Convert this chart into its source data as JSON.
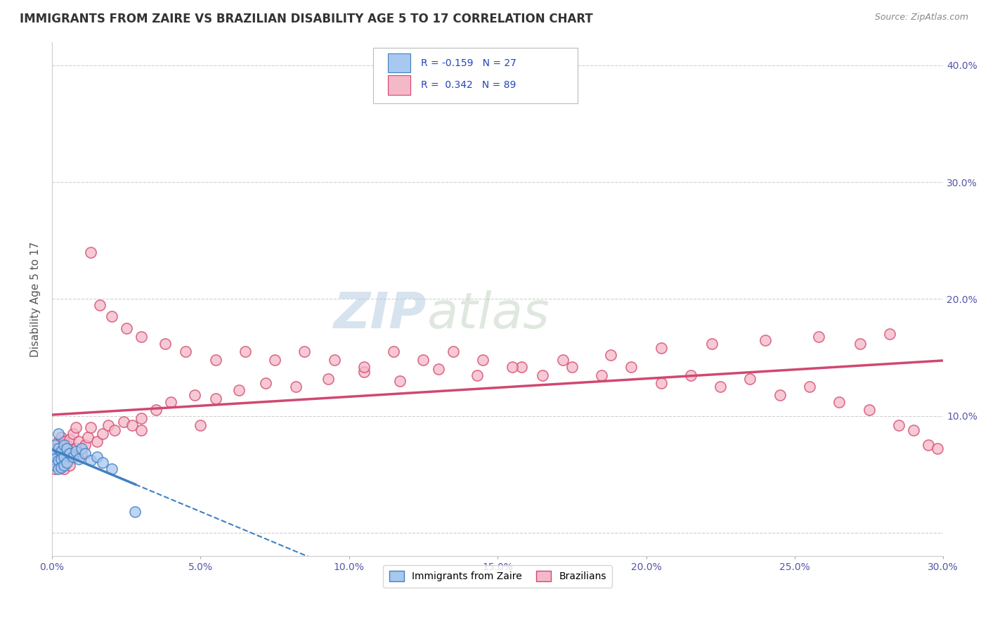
{
  "title": "IMMIGRANTS FROM ZAIRE VS BRAZILIAN DISABILITY AGE 5 TO 17 CORRELATION CHART",
  "source": "Source: ZipAtlas.com",
  "ylabel": "Disability Age 5 to 17",
  "xlabel": "",
  "legend_bottom": [
    "Immigrants from Zaire",
    "Brazilians"
  ],
  "r_zaire": -0.159,
  "n_zaire": 27,
  "r_brazil": 0.342,
  "n_brazil": 89,
  "xlim": [
    0.0,
    0.3
  ],
  "ylim": [
    -0.02,
    0.42
  ],
  "xticks": [
    0.0,
    0.05,
    0.1,
    0.15,
    0.2,
    0.25,
    0.3
  ],
  "yticks": [
    0.0,
    0.1,
    0.2,
    0.3,
    0.4
  ],
  "color_zaire": "#a8c8f0",
  "color_brazil": "#f5b8c8",
  "line_color_zaire": "#4080c0",
  "line_color_brazil": "#d04870",
  "watermark_zip": "ZIP",
  "watermark_atlas": "atlas",
  "background": "#ffffff",
  "grid_color": "#d0d0d0",
  "zaire_points_x": [
    0.001,
    0.001,
    0.001,
    0.001,
    0.002,
    0.002,
    0.002,
    0.002,
    0.003,
    0.003,
    0.003,
    0.004,
    0.004,
    0.004,
    0.005,
    0.005,
    0.006,
    0.007,
    0.008,
    0.009,
    0.01,
    0.011,
    0.013,
    0.015,
    0.017,
    0.02,
    0.028
  ],
  "zaire_points_y": [
    0.075,
    0.068,
    0.063,
    0.058,
    0.085,
    0.072,
    0.062,
    0.055,
    0.07,
    0.063,
    0.056,
    0.075,
    0.065,
    0.058,
    0.072,
    0.06,
    0.068,
    0.065,
    0.07,
    0.063,
    0.072,
    0.068,
    0.062,
    0.065,
    0.06,
    0.055,
    0.018
  ],
  "brazil_points_x": [
    0.001,
    0.001,
    0.001,
    0.002,
    0.002,
    0.002,
    0.003,
    0.003,
    0.003,
    0.004,
    0.004,
    0.004,
    0.005,
    0.005,
    0.006,
    0.006,
    0.007,
    0.007,
    0.008,
    0.008,
    0.009,
    0.01,
    0.011,
    0.012,
    0.013,
    0.015,
    0.017,
    0.019,
    0.021,
    0.024,
    0.027,
    0.03,
    0.035,
    0.04,
    0.048,
    0.055,
    0.063,
    0.072,
    0.082,
    0.093,
    0.105,
    0.117,
    0.13,
    0.143,
    0.158,
    0.172,
    0.188,
    0.205,
    0.222,
    0.24,
    0.258,
    0.272,
    0.282,
    0.013,
    0.016,
    0.02,
    0.025,
    0.03,
    0.038,
    0.045,
    0.055,
    0.065,
    0.075,
    0.085,
    0.095,
    0.105,
    0.115,
    0.125,
    0.135,
    0.145,
    0.155,
    0.165,
    0.175,
    0.185,
    0.195,
    0.205,
    0.215,
    0.225,
    0.235,
    0.245,
    0.255,
    0.265,
    0.275,
    0.285,
    0.29,
    0.295,
    0.298,
    0.03,
    0.05
  ],
  "brazil_points_y": [
    0.06,
    0.072,
    0.055,
    0.078,
    0.065,
    0.058,
    0.082,
    0.07,
    0.062,
    0.078,
    0.065,
    0.055,
    0.075,
    0.062,
    0.08,
    0.058,
    0.085,
    0.068,
    0.09,
    0.072,
    0.078,
    0.068,
    0.075,
    0.082,
    0.09,
    0.078,
    0.085,
    0.092,
    0.088,
    0.095,
    0.092,
    0.098,
    0.105,
    0.112,
    0.118,
    0.115,
    0.122,
    0.128,
    0.125,
    0.132,
    0.138,
    0.13,
    0.14,
    0.135,
    0.142,
    0.148,
    0.152,
    0.158,
    0.162,
    0.165,
    0.168,
    0.162,
    0.17,
    0.24,
    0.195,
    0.185,
    0.175,
    0.168,
    0.162,
    0.155,
    0.148,
    0.155,
    0.148,
    0.155,
    0.148,
    0.142,
    0.155,
    0.148,
    0.155,
    0.148,
    0.142,
    0.135,
    0.142,
    0.135,
    0.142,
    0.128,
    0.135,
    0.125,
    0.132,
    0.118,
    0.125,
    0.112,
    0.105,
    0.092,
    0.088,
    0.075,
    0.072,
    0.088,
    0.092
  ]
}
